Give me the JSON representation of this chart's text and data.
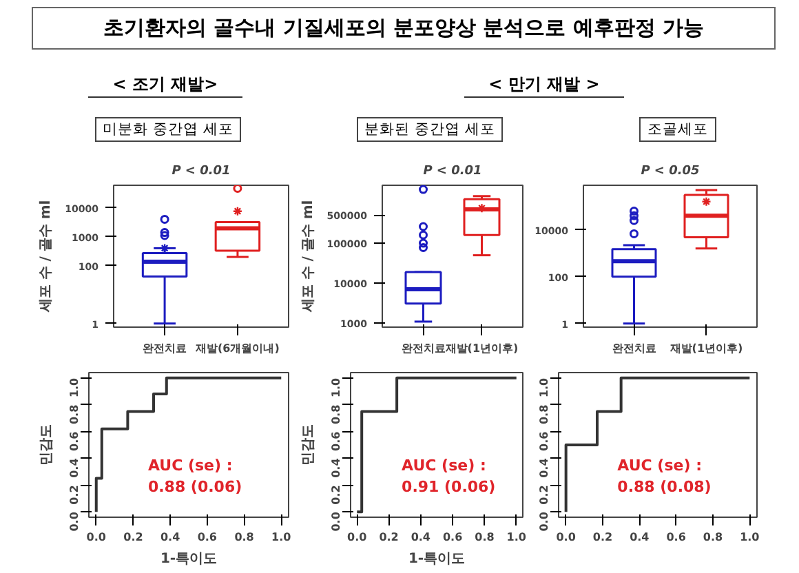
{
  "chart_data": [
    {
      "type": "other",
      "title": "초기환자의 골수내 기질세포의 분포양상 분석으로 예후판정 가능"
    },
    {
      "type": "box",
      "subtitle": "< 조기 재발>",
      "title": "미분화 중간엽 세포",
      "annotations": [
        "P < 0.01"
      ],
      "categories": [
        "완전치료",
        "재발(6개월이내)"
      ],
      "colors": [
        "#1c1cc0",
        "#e02020"
      ],
      "boxes": [
        {
          "low": 1,
          "q1": 42,
          "median": 137,
          "q3": 270,
          "high": 400,
          "mean": 400,
          "outliers": [
            1100,
            1400,
            4000
          ]
        },
        {
          "low": 200,
          "q1": 330,
          "median": 1950,
          "q3": 3200,
          "high": 3200,
          "mean": 7600,
          "outliers": [
            47000
          ]
        }
      ],
      "ylabel": "세포 수 / 골수 ml",
      "log": true,
      "ylim": [
        0.75,
        60000
      ],
      "yticks": [
        1,
        100,
        1000,
        10000
      ]
    },
    {
      "type": "box",
      "subtitle": "< 만기 재발 >",
      "title": "분화된 중간엽 세포",
      "annotations": [
        "P < 0.01"
      ],
      "categories": [
        "완전치료",
        "재발(1년이후)"
      ],
      "colors": [
        "#1c1cc0",
        "#e02020"
      ],
      "boxes": [
        {
          "low": 1100,
          "q1": 3100,
          "median": 7100,
          "q3": 19000,
          "high": 19000,
          "outliers": [
            78000,
            100000,
            160000,
            260000,
            2200000
          ]
        },
        {
          "low": 50000,
          "q1": 160000,
          "median": 700000,
          "q3": 1260000,
          "high": 1500000,
          "mean": 750000
        }
      ],
      "ylabel": "세포 수 / 골수 ml",
      "log": true,
      "ylim": [
        800,
        2800000
      ],
      "yticks": [
        1000,
        10000,
        100000,
        500000
      ]
    },
    {
      "type": "box",
      "title": "조골세포",
      "annotations": [
        "P < 0.05"
      ],
      "categories": [
        "완전치료",
        "재발(1년이후)"
      ],
      "colors": [
        "#1c1cc0",
        "#e02020"
      ],
      "boxes": [
        {
          "low": 1,
          "q1": 100,
          "median": 460,
          "q3": 1500,
          "high": 2200,
          "outliers": [
            6800,
            25000,
            40000,
            63000
          ]
        },
        {
          "low": 1600,
          "q1": 4800,
          "median": 40000,
          "q3": 310000,
          "high": 500000,
          "mean": 160000
        }
      ],
      "log": true,
      "ylim": [
        0.7,
        800000
      ],
      "yticks": [
        1,
        100,
        10000
      ]
    },
    {
      "type": "line",
      "x": [
        0,
        0,
        0.03,
        0.03,
        0.17,
        0.17,
        0.31,
        0.31,
        0.38,
        0.38,
        1
      ],
      "values": [
        0,
        0.25,
        0.25,
        0.62,
        0.62,
        0.75,
        0.75,
        0.88,
        0.88,
        1,
        1
      ],
      "color": "#333333",
      "annotations": [
        "AUC (se) :\n0.88 (0.06)"
      ],
      "xlabel": "1-특이도",
      "ylabel": "민감도",
      "xlim": [
        -0.04,
        1.04
      ],
      "ylim": [
        -0.04,
        1.04
      ],
      "xticks": [
        {
          "value": 0,
          "label": "0.0"
        },
        {
          "value": 0.2,
          "label": "0.2"
        },
        {
          "value": 0.4,
          "label": "0.4"
        },
        {
          "value": 0.6,
          "label": "0.6"
        },
        {
          "value": 0.8,
          "label": "0.8"
        },
        {
          "value": 1,
          "label": "1.0"
        }
      ],
      "yticks": [
        {
          "value": 0,
          "label": "0.0"
        },
        {
          "value": 0.2,
          "label": "0.2"
        },
        {
          "value": 0.4,
          "label": "0.4"
        },
        {
          "value": 0.6,
          "label": "0.6"
        },
        {
          "value": 0.8,
          "label": "0.8"
        },
        {
          "value": 1,
          "label": "1.0"
        }
      ]
    },
    {
      "type": "line",
      "x": [
        0,
        0.03,
        0.03,
        0.25,
        0.25,
        1
      ],
      "values": [
        0,
        0,
        0.75,
        0.75,
        1,
        1
      ],
      "color": "#333333",
      "annotations": [
        "AUC (se) :\n0.91 (0.06)"
      ],
      "xlabel": "1-특이도",
      "ylabel": "민감도",
      "xlim": [
        -0.04,
        1.04
      ],
      "ylim": [
        -0.04,
        1.04
      ],
      "xticks": [
        {
          "value": 0,
          "label": "0.0"
        },
        {
          "value": 0.2,
          "label": "0.2"
        },
        {
          "value": 0.4,
          "label": "0.4"
        },
        {
          "value": 0.6,
          "label": "0.6"
        },
        {
          "value": 0.8,
          "label": "0.8"
        },
        {
          "value": 1,
          "label": "1.0"
        }
      ],
      "yticks": [
        {
          "value": 0,
          "label": "0.0"
        },
        {
          "value": 0.2,
          "label": "0.2"
        },
        {
          "value": 0.4,
          "label": "0.4"
        },
        {
          "value": 0.6,
          "label": "0.6"
        },
        {
          "value": 0.8,
          "label": "0.8"
        },
        {
          "value": 1,
          "label": "1.0"
        }
      ]
    },
    {
      "type": "line",
      "x": [
        0,
        0,
        0.17,
        0.17,
        0.3,
        0.3,
        1
      ],
      "values": [
        0,
        0.5,
        0.5,
        0.75,
        0.75,
        1,
        1
      ],
      "color": "#333333",
      "annotations": [
        "AUC (se) :\n0.88 (0.08)"
      ],
      "xlim": [
        -0.04,
        1.04
      ],
      "ylim": [
        -0.04,
        1.04
      ],
      "xticks": [
        {
          "value": 0,
          "label": "0.0"
        },
        {
          "value": 0.2,
          "label": "0.2"
        },
        {
          "value": 0.4,
          "label": "0.4"
        },
        {
          "value": 0.6,
          "label": "0.6"
        },
        {
          "value": 0.8,
          "label": "0.8"
        },
        {
          "value": 1,
          "label": "1.0"
        }
      ],
      "yticks": [
        {
          "value": 0,
          "label": "0.0"
        },
        {
          "value": 0.2,
          "label": "0.2"
        },
        {
          "value": 0.4,
          "label": "0.4"
        },
        {
          "value": 0.6,
          "label": "0.6"
        },
        {
          "value": 0.8,
          "label": "0.8"
        },
        {
          "value": 1,
          "label": "1.0"
        }
      ]
    }
  ]
}
